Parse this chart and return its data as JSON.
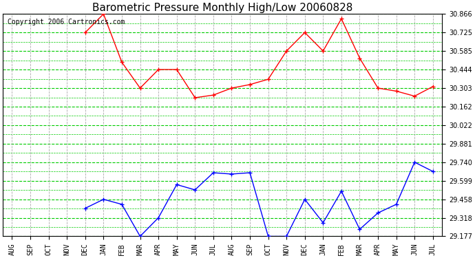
{
  "title": "Barometric Pressure Monthly High/Low 20060828",
  "copyright": "Copyright 2006 Cartronics.com",
  "x_labels": [
    "AUG",
    "SEP",
    "OCT",
    "NOV",
    "DEC",
    "JAN",
    "FEB",
    "MAR",
    "APR",
    "MAY",
    "JUN",
    "JUL",
    "AUG",
    "SEP",
    "OCT",
    "NOV",
    "DEC",
    "JAN",
    "FEB",
    "MAR",
    "APR",
    "MAY",
    "JUN",
    "JUL"
  ],
  "high_values": [
    null,
    null,
    null,
    null,
    30.725,
    30.866,
    30.5,
    30.303,
    30.444,
    30.444,
    30.23,
    30.25,
    30.303,
    30.33,
    30.37,
    30.585,
    30.725,
    30.585,
    30.83,
    30.53,
    30.303,
    30.28,
    30.242,
    30.315
  ],
  "low_values": [
    null,
    null,
    null,
    null,
    29.39,
    29.458,
    29.42,
    29.177,
    29.318,
    29.57,
    29.53,
    29.66,
    29.65,
    29.66,
    29.177,
    29.177,
    29.458,
    29.28,
    29.52,
    29.23,
    29.355,
    29.42,
    29.74,
    29.67
  ],
  "ylim_min": 29.177,
  "ylim_max": 30.866,
  "yticks": [
    29.177,
    29.318,
    29.458,
    29.599,
    29.74,
    29.881,
    30.022,
    30.162,
    30.303,
    30.444,
    30.585,
    30.725,
    30.866
  ],
  "high_color": "#ff0000",
  "low_color": "#0000ff",
  "grid_green_color": "#00cc00",
  "grid_gray_color": "#aaaaaa",
  "bg_color": "#ffffff",
  "title_fontsize": 11,
  "copyright_fontsize": 7,
  "tick_fontsize": 7,
  "ytick_fontsize": 7
}
